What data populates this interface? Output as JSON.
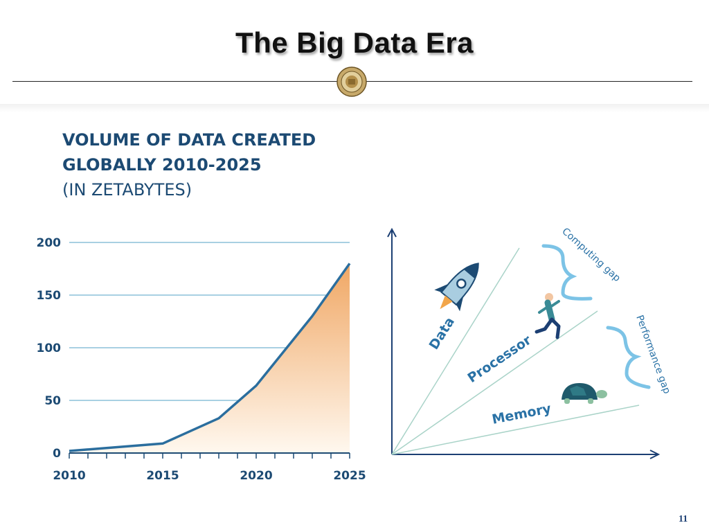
{
  "slide": {
    "title": "The Big Data Era",
    "page_number": "11"
  },
  "chart_data": {
    "type": "area",
    "title": "VOLUME OF DATA CREATED GLOBALLY 2010-2025",
    "subtitle": "(IN ZETABYTES)",
    "title_line1": "VOLUME OF DATA CREATED",
    "title_line2": "GLOBALLY 2010-2025",
    "x": [
      2010,
      2015,
      2018,
      2020,
      2023,
      2025
    ],
    "values": [
      2,
      9,
      33,
      64,
      130,
      180
    ],
    "xlim": [
      2010,
      2025
    ],
    "ylim": [
      0,
      200
    ],
    "x_ticks": [
      2010,
      2015,
      2020,
      2025
    ],
    "y_ticks": [
      0,
      50,
      100,
      150,
      200
    ],
    "grid": true,
    "colors": {
      "line": "#2b6e9e",
      "area_top": "#f0a764",
      "area_bottom": "#fff8ef",
      "grid": "#8cc0d8",
      "text": "#1c4a73"
    }
  },
  "diagram": {
    "labels": {
      "data": "Data",
      "processor": "Processor",
      "memory": "Memory"
    },
    "gaps": {
      "computing": "Computing gap",
      "performance": "Performance gap"
    },
    "icons": {
      "data": "rocket-icon",
      "processor": "runner-icon",
      "memory": "turtle-icon"
    },
    "colors": {
      "axis": "#1c3f73",
      "lines": "#a9d3c8",
      "labels": "#2a72a6",
      "brace": "#7cc3e6"
    }
  }
}
